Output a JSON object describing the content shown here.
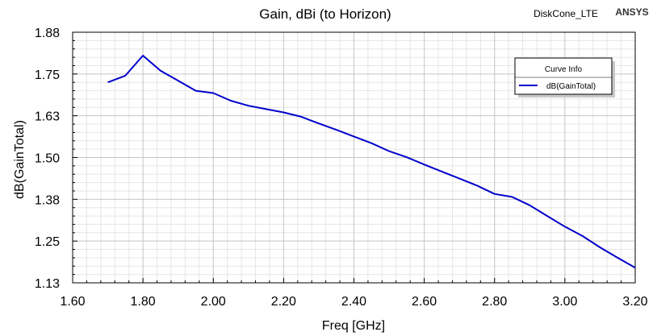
{
  "header": {
    "project_name": "DiskCone_LTE",
    "brand": "ANSYS"
  },
  "chart_data": {
    "type": "line",
    "title": "Gain, dBi (to Horizon)",
    "xlabel": "Freq [GHz]",
    "ylabel": "dB(GainTotal)",
    "xlim": [
      1.6,
      3.2
    ],
    "ylim": [
      1.13,
      1.88
    ],
    "x_ticks": [
      "1.60",
      "1.80",
      "2.00",
      "2.20",
      "2.40",
      "2.60",
      "2.80",
      "3.00",
      "3.20"
    ],
    "y_ticks": [
      "1.13",
      "1.25",
      "1.38",
      "1.50",
      "1.63",
      "1.75",
      "1.88"
    ],
    "grid": true,
    "legend": {
      "title": "Curve Info",
      "placement": "top-right"
    },
    "series": [
      {
        "name": "dB(GainTotal)",
        "color": "#0000cc",
        "x": [
          1.7,
          1.75,
          1.8,
          1.85,
          1.9,
          1.95,
          2.0,
          2.05,
          2.1,
          2.15,
          2.2,
          2.25,
          2.3,
          2.35,
          2.4,
          2.45,
          2.5,
          2.55,
          2.6,
          2.65,
          2.7,
          2.75,
          2.8,
          2.85,
          2.9,
          2.95,
          3.0,
          3.05,
          3.1,
          3.15,
          3.2
        ],
        "y": [
          1.73,
          1.75,
          1.81,
          1.765,
          1.735,
          1.705,
          1.698,
          1.675,
          1.66,
          1.65,
          1.64,
          1.627,
          1.607,
          1.588,
          1.568,
          1.548,
          1.524,
          1.506,
          1.484,
          1.463,
          1.442,
          1.421,
          1.396,
          1.387,
          1.362,
          1.33,
          1.298,
          1.27,
          1.236,
          1.205,
          1.175
        ]
      }
    ]
  }
}
